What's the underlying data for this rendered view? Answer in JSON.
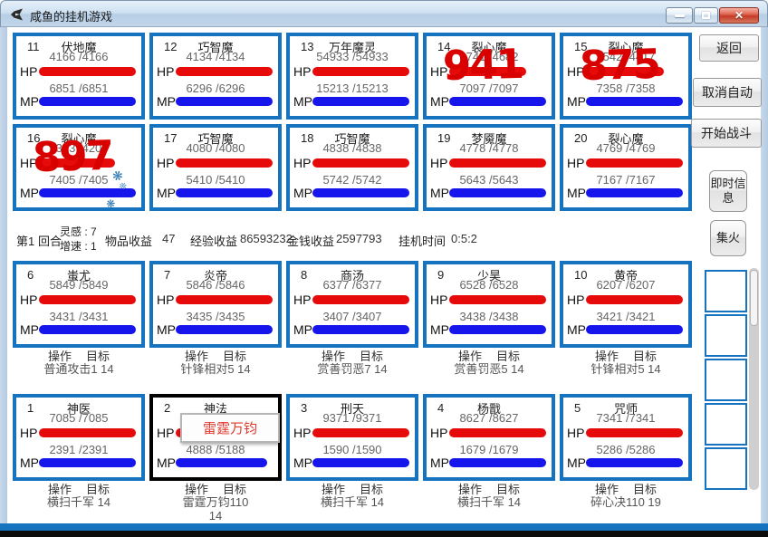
{
  "window": {
    "title": "咸鱼的挂机游戏"
  },
  "labels": {
    "hp": "HP",
    "mp": "MP",
    "action": "操作",
    "target": "目标"
  },
  "status": {
    "round": "第1",
    "round_suffix": "回合",
    "insight": "灵感 : 7",
    "speed": "增速 : 1",
    "item_label": "物品收益",
    "item_value": "47",
    "exp_label": "经验收益",
    "exp_value": "86593232",
    "gold_label": "金钱收益",
    "gold_value": "2597793",
    "time_label": "挂机时间",
    "time_value": "0:5:2"
  },
  "sidebar": {
    "back_label": "返回",
    "cancel_auto_label": "取消自动",
    "start_battle_label": "开始战斗",
    "info_label": "即时信息",
    "focus_fire_label": "集火",
    "empty_slots": 5
  },
  "tooltip": {
    "text": "雷霆万钧"
  },
  "colors": {
    "cell_border": "#1673bf",
    "selected_border": "#000000",
    "hp_bar": "#e60a0a",
    "mp_bar": "#1515ec",
    "damage_text": "#d90000",
    "titlebar": "#c3d6e9",
    "close_button": "#c53a28"
  },
  "enemies": {
    "row1": [
      {
        "id": 11,
        "name": "伏地魔",
        "hp": [
          4166,
          4166
        ],
        "mp": [
          6851,
          6851
        ]
      },
      {
        "id": 12,
        "name": "巧智魔",
        "hp": [
          4134,
          4134
        ],
        "mp": [
          6296,
          6296
        ]
      },
      {
        "id": 13,
        "name": "万年魔灵",
        "hp": [
          54933,
          54933
        ],
        "mp": [
          15213,
          15213
        ]
      },
      {
        "id": 14,
        "name": "裂心魔",
        "hp": [
          3741,
          4682
        ],
        "mp": [
          7097,
          7097
        ],
        "damage": 941
      },
      {
        "id": 15,
        "name": "裂心魔",
        "hp": [
          3542,
          4417
        ],
        "mp": [
          7358,
          7358
        ],
        "damage": 875
      }
    ],
    "row2": [
      {
        "id": 16,
        "name": "裂心魔",
        "hp": [
          3303,
          4200
        ],
        "mp": [
          7405,
          7405
        ],
        "damage": 897,
        "effect": "lightning-sparkles"
      },
      {
        "id": 17,
        "name": "巧智魔",
        "hp": [
          4080,
          4080
        ],
        "mp": [
          5410,
          5410
        ]
      },
      {
        "id": 18,
        "name": "巧智魔",
        "hp": [
          4838,
          4838
        ],
        "mp": [
          5742,
          5742
        ]
      },
      {
        "id": 19,
        "name": "梦魇魔",
        "hp": [
          4778,
          4778
        ],
        "mp": [
          5643,
          5643
        ]
      },
      {
        "id": 20,
        "name": "裂心魔",
        "hp": [
          4769,
          4769
        ],
        "mp": [
          7167,
          7167
        ]
      }
    ]
  },
  "allies": {
    "row1": [
      {
        "id": 6,
        "name": "蚩尤",
        "hp": [
          5849,
          5849
        ],
        "mp": [
          3431,
          3431
        ],
        "skill_lines": [
          "普通攻击1 14"
        ]
      },
      {
        "id": 7,
        "name": "炎帝",
        "hp": [
          5846,
          5846
        ],
        "mp": [
          3435,
          3435
        ],
        "skill_lines": [
          "针锋相对5 14"
        ]
      },
      {
        "id": 8,
        "name": "商汤",
        "hp": [
          6377,
          6377
        ],
        "mp": [
          3407,
          3407
        ],
        "skill_lines": [
          "赏善罚恶7 14"
        ]
      },
      {
        "id": 9,
        "name": "少昊",
        "hp": [
          6528,
          6528
        ],
        "mp": [
          3438,
          3438
        ],
        "skill_lines": [
          "赏善罚恶5 14"
        ]
      },
      {
        "id": 10,
        "name": "黄帝",
        "hp": [
          6207,
          6207
        ],
        "mp": [
          3421,
          3421
        ],
        "skill_lines": [
          "针锋相对5 14"
        ]
      }
    ],
    "row2": [
      {
        "id": 1,
        "name": "神医",
        "hp": [
          7085,
          7085
        ],
        "mp": [
          2391,
          2391
        ],
        "skill_lines": [
          "横扫千军 14"
        ]
      },
      {
        "id": 2,
        "name": "神法",
        "hp": [
          6287,
          6287
        ],
        "mp": [
          4888,
          5188
        ],
        "skill_lines": [
          "雷霆万钧110",
          "14"
        ],
        "selected": true,
        "tooltip": "雷霆万钧"
      },
      {
        "id": 3,
        "name": "刑天",
        "hp": [
          9371,
          9371
        ],
        "mp": [
          1590,
          1590
        ],
        "skill_lines": [
          "横扫千军 14"
        ]
      },
      {
        "id": 4,
        "name": "杨戬",
        "hp": [
          8627,
          8627
        ],
        "mp": [
          1679,
          1679
        ],
        "skill_lines": [
          "横扫千军 14"
        ]
      },
      {
        "id": 5,
        "name": "咒师",
        "hp": [
          7341,
          7341
        ],
        "mp": [
          5286,
          5286
        ],
        "skill_lines": [
          "碎心决110 19"
        ]
      }
    ]
  }
}
